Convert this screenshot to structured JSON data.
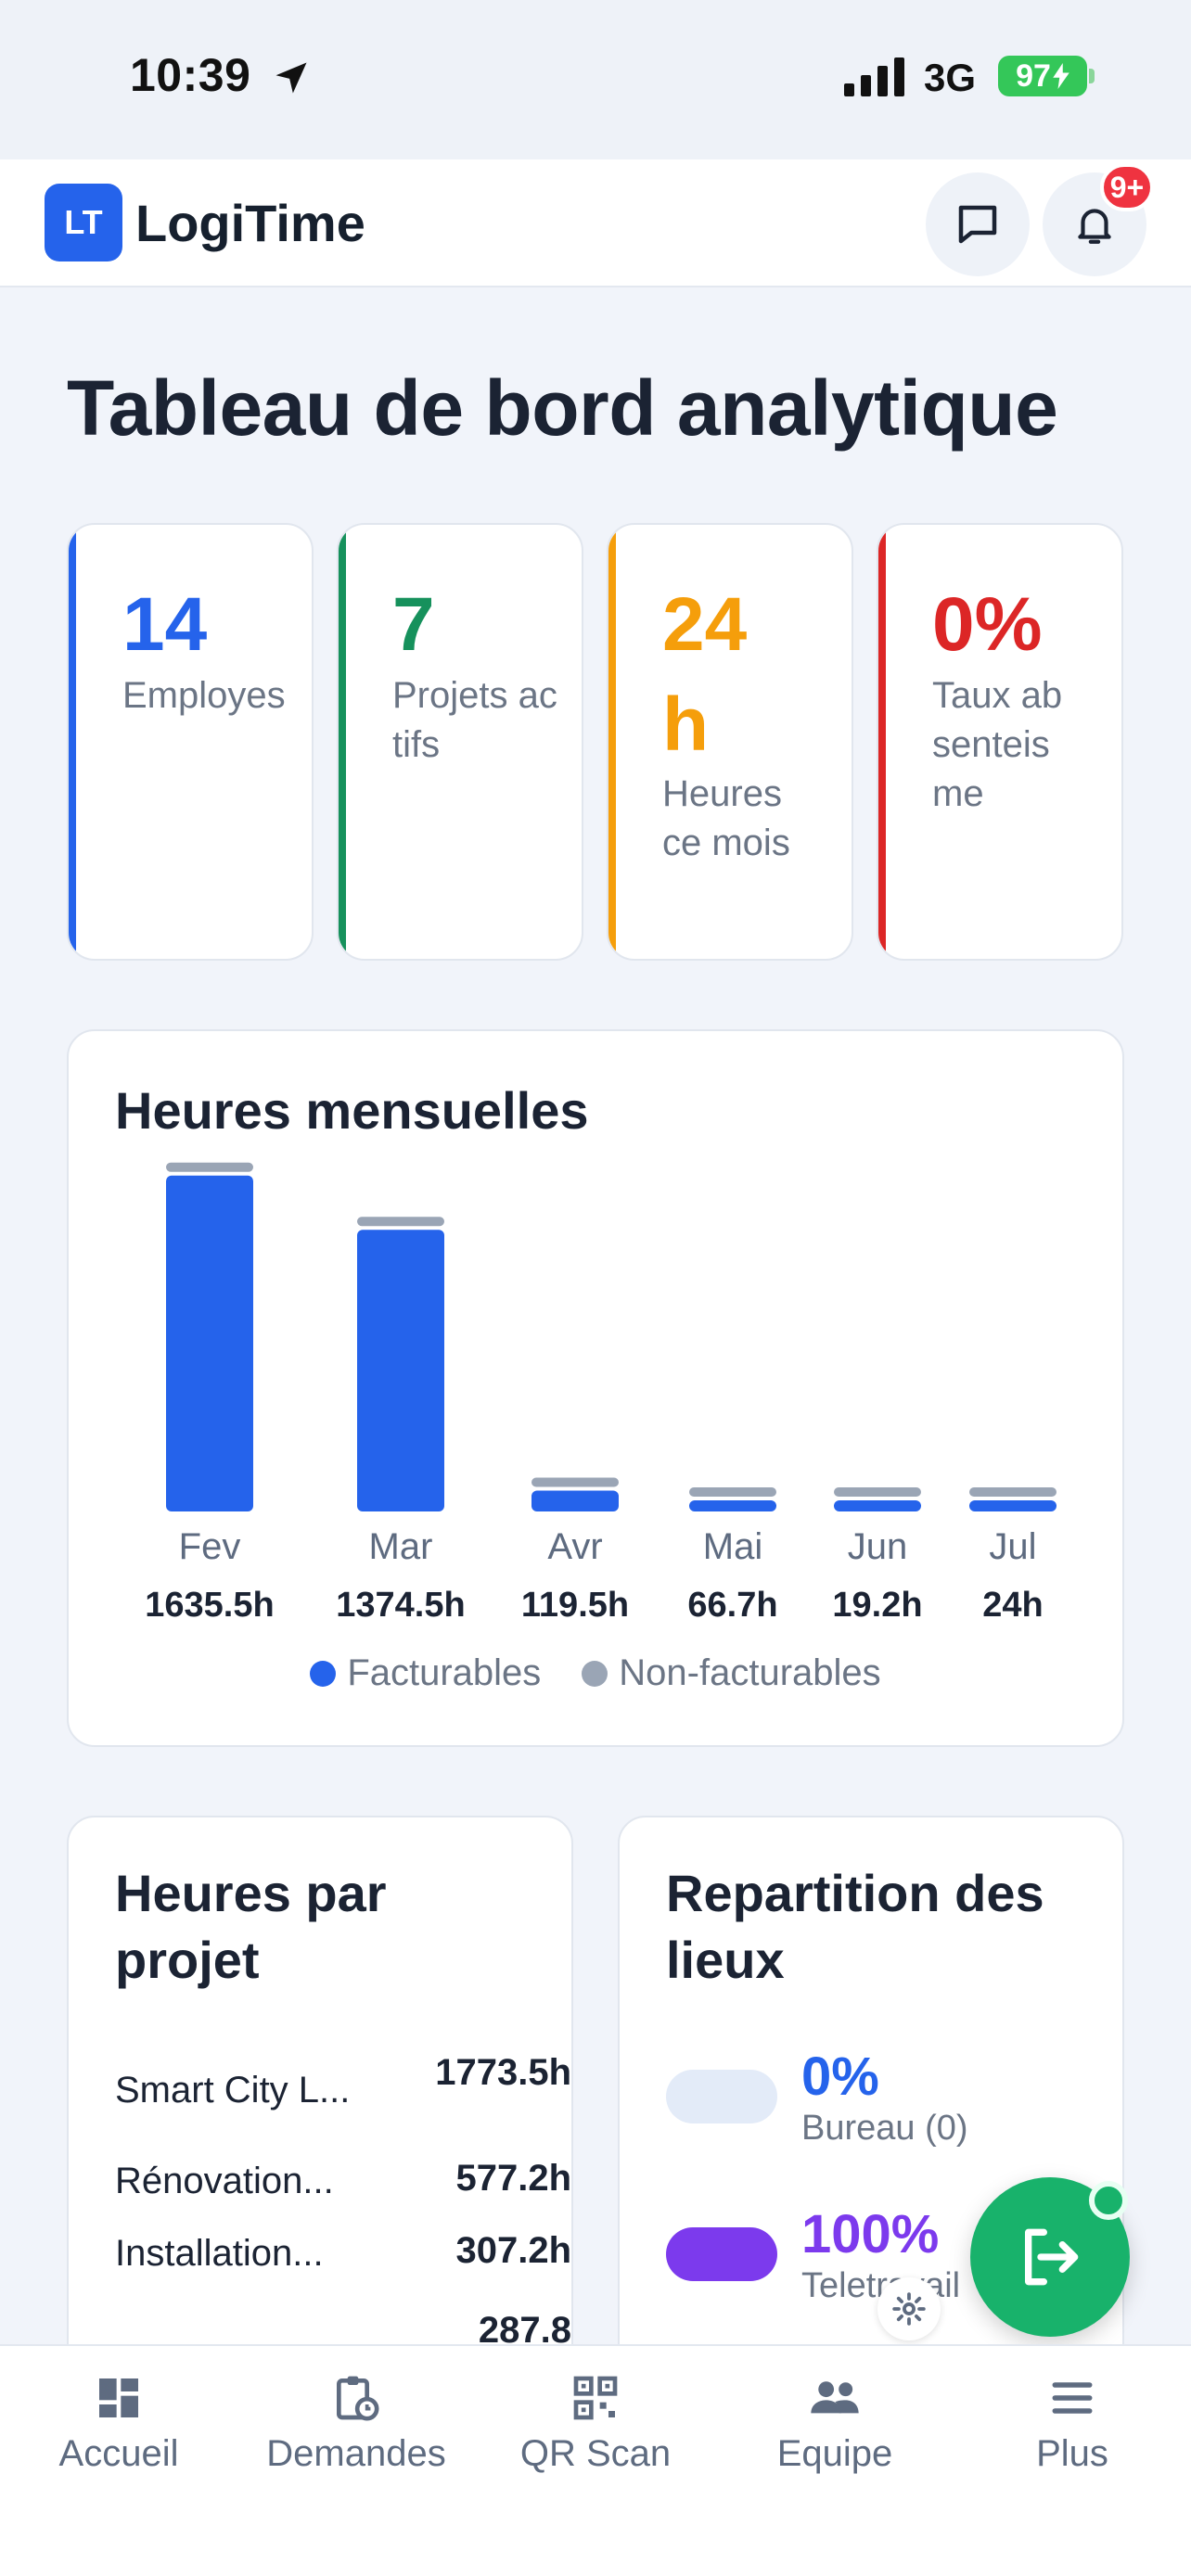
{
  "status_bar": {
    "time": "10:39",
    "network": "3G",
    "battery": "97"
  },
  "header": {
    "logo": "LT",
    "app_name": "LogiTime",
    "notification_badge": "9+"
  },
  "page_title": "Tableau de bord analytique",
  "kpis": [
    {
      "value": "14",
      "label": "Employes",
      "color": "#2563EB"
    },
    {
      "value": "7",
      "label": "Projets actifs",
      "color": "#16915C"
    },
    {
      "value": "24h",
      "label": "Heures ce mois",
      "color": "#F59E0B"
    },
    {
      "value": "0%",
      "label": "Taux absenteisme",
      "color": "#DC2626"
    }
  ],
  "monthly_hours": {
    "title": "Heures mensuelles",
    "legend": {
      "billable": "Facturables",
      "non_billable": "Non-facturables"
    },
    "colors": {
      "billable": "#2563EB",
      "non_billable": "#9AA5B5"
    }
  },
  "chart_data": {
    "type": "bar",
    "categories": [
      "Fev",
      "Mar",
      "Avr",
      "Mai",
      "Jun",
      "Jul"
    ],
    "value_labels": [
      "1635.5h",
      "1374.5h",
      "119.5h",
      "66.7h",
      "19.2h",
      "24h"
    ],
    "series": [
      {
        "name": "Facturables",
        "values": [
          1610,
          1350,
          100,
          50,
          8,
          12
        ]
      },
      {
        "name": "Non-facturables",
        "values": [
          25.5,
          24.5,
          19.5,
          16.7,
          11.2,
          12
        ]
      }
    ],
    "title": "Heures mensuelles",
    "xlabel": "",
    "ylabel": "",
    "legend": "bottom"
  },
  "projects": {
    "title": "Heures par projet",
    "items": [
      {
        "name": "Smart City L...",
        "hours": "1773.5h"
      },
      {
        "name": "Rénovation...",
        "hours": "577.2h"
      },
      {
        "name": "Installation...",
        "hours": "307.2h"
      },
      {
        "name": "",
        "hours": "287.8"
      }
    ]
  },
  "locations": {
    "title": "Repartition des lieux",
    "items": [
      {
        "pct": "0%",
        "label": "Bureau (0)",
        "color": "#2563EB",
        "pill": "#E3EBF8"
      },
      {
        "pct": "100%",
        "label": "Teletravail",
        "color": "#7C3AED",
        "pill": "#7C3AED"
      }
    ]
  },
  "tabs": [
    {
      "label": "Accueil",
      "icon": "dashboard-icon"
    },
    {
      "label": "Demandes",
      "icon": "clipboard-clock-icon"
    },
    {
      "label": "QR Scan",
      "icon": "qr-code-icon"
    },
    {
      "label": "Equipe",
      "icon": "people-icon"
    },
    {
      "label": "Plus",
      "icon": "menu-icon"
    }
  ]
}
